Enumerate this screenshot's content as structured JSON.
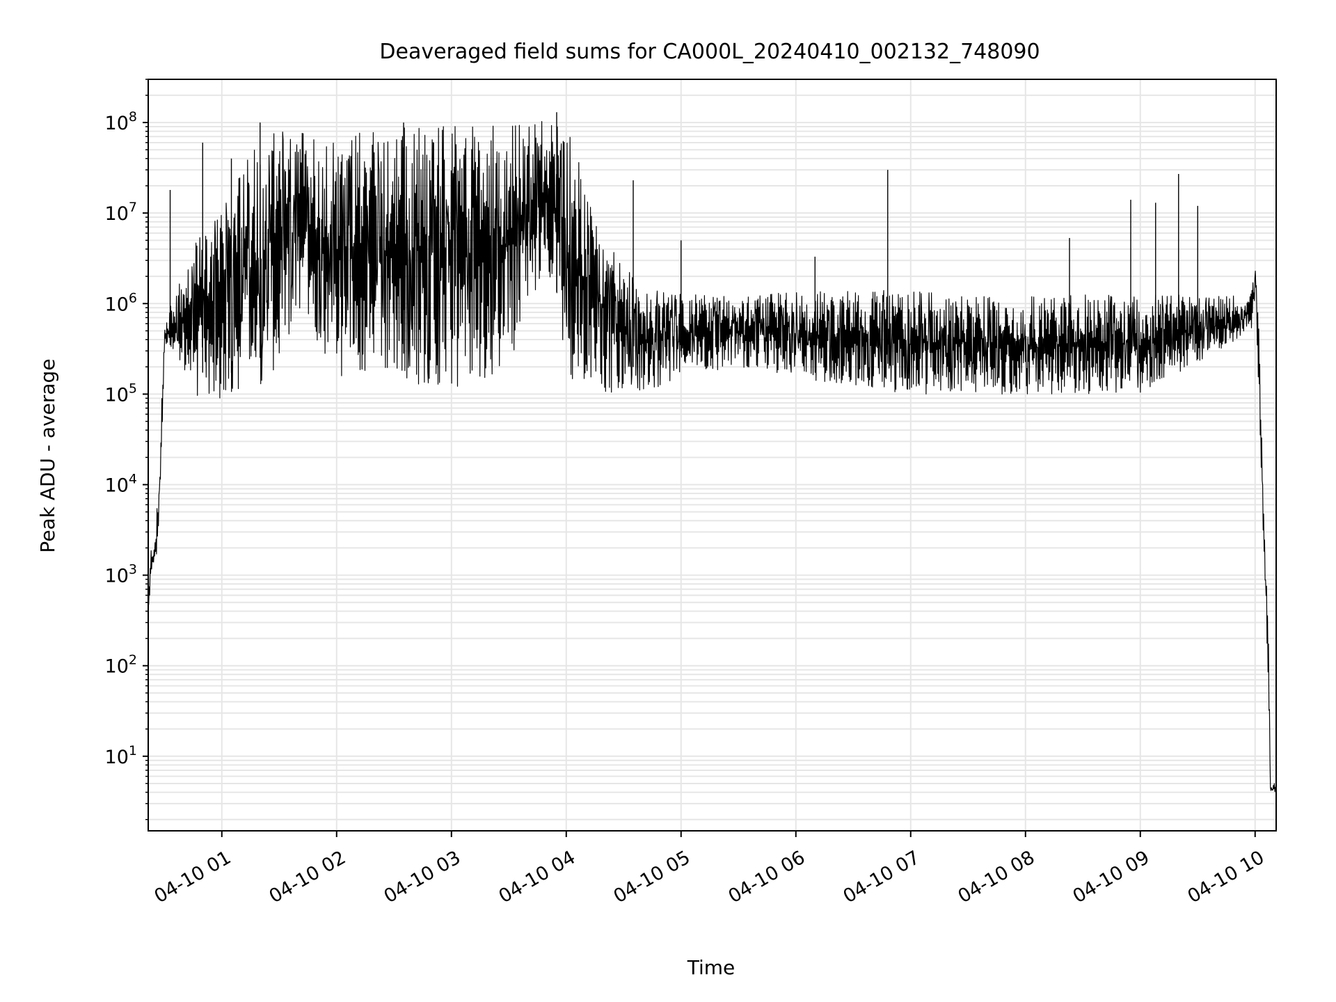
{
  "chart_data": {
    "type": "line",
    "title": "Deaveraged field sums for CA000L_20240410_002132_748090",
    "xlabel": "Time",
    "ylabel": "Peak ADU - average",
    "y_scale": "log",
    "ylim": [
      1.5,
      300000000
    ],
    "xlim": [
      "2024-04-10 00:21:32",
      "2024-04-10 10:11:00"
    ],
    "grid": true,
    "line_color": "#000000",
    "grid_color": "#e6e6e6",
    "x_ticks": [
      {
        "t": "2024-04-10 01:00",
        "label": "04-10 01"
      },
      {
        "t": "2024-04-10 02:00",
        "label": "04-10 02"
      },
      {
        "t": "2024-04-10 03:00",
        "label": "04-10 03"
      },
      {
        "t": "2024-04-10 04:00",
        "label": "04-10 04"
      },
      {
        "t": "2024-04-10 05:00",
        "label": "04-10 05"
      },
      {
        "t": "2024-04-10 06:00",
        "label": "04-10 06"
      },
      {
        "t": "2024-04-10 07:00",
        "label": "04-10 07"
      },
      {
        "t": "2024-04-10 08:00",
        "label": "04-10 08"
      },
      {
        "t": "2024-04-10 09:00",
        "label": "04-10 09"
      },
      {
        "t": "2024-04-10 10:00",
        "label": "04-10 10"
      }
    ],
    "y_ticks": [
      {
        "value": 10,
        "base": "10",
        "exp": "1"
      },
      {
        "value": 100,
        "base": "10",
        "exp": "2"
      },
      {
        "value": 1000,
        "base": "10",
        "exp": "3"
      },
      {
        "value": 10000,
        "base": "10",
        "exp": "4"
      },
      {
        "value": 100000,
        "base": "10",
        "exp": "5"
      },
      {
        "value": 1000000,
        "base": "10",
        "exp": "6"
      },
      {
        "value": 10000000,
        "base": "10",
        "exp": "7"
      },
      {
        "value": 100000000,
        "base": "10",
        "exp": "8"
      }
    ],
    "series": [
      {
        "band": [
          {
            "t": "2024-04-10 00:21:32",
            "low": 350,
            "high": 500
          },
          {
            "t": "2024-04-10 00:23",
            "low": 900,
            "high": 2000
          },
          {
            "t": "2024-04-10 00:25",
            "low": 1000,
            "high": 3000
          },
          {
            "t": "2024-04-10 00:27",
            "low": 2000,
            "high": 9000
          },
          {
            "t": "2024-04-10 00:30",
            "low": 300000,
            "high": 600000
          },
          {
            "t": "2024-04-10 00:35",
            "low": 300000,
            "high": 1200000
          },
          {
            "t": "2024-04-10 00:45",
            "low": 90000,
            "high": 5000000
          },
          {
            "t": "2024-04-10 01:00",
            "low": 80000,
            "high": 10000000
          },
          {
            "t": "2024-04-10 01:15",
            "low": 100000,
            "high": 60000000
          },
          {
            "t": "2024-04-10 01:30",
            "low": 200000,
            "high": 80000000
          },
          {
            "t": "2024-04-10 01:45",
            "low": 600000,
            "high": 90000000
          },
          {
            "t": "2024-04-10 02:00",
            "low": 150000,
            "high": 80000000
          },
          {
            "t": "2024-04-10 02:30",
            "low": 150000,
            "high": 100000000
          },
          {
            "t": "2024-04-10 03:00",
            "low": 100000,
            "high": 90000000
          },
          {
            "t": "2024-04-10 03:30",
            "low": 200000,
            "high": 100000000
          },
          {
            "t": "2024-04-10 03:50",
            "low": 3000000,
            "high": 110000000
          },
          {
            "t": "2024-04-10 04:00",
            "low": 150000,
            "high": 100000000
          },
          {
            "t": "2024-04-10 04:20",
            "low": 100000,
            "high": 5000000
          },
          {
            "t": "2024-04-10 04:40",
            "low": 100000,
            "high": 1500000
          },
          {
            "t": "2024-04-10 05:00",
            "low": 150000,
            "high": 1300000
          },
          {
            "t": "2024-04-10 05:30",
            "low": 200000,
            "high": 1200000
          },
          {
            "t": "2024-04-10 06:00",
            "low": 150000,
            "high": 1400000
          },
          {
            "t": "2024-04-10 07:00",
            "low": 100000,
            "high": 1400000
          },
          {
            "t": "2024-04-10 08:00",
            "low": 100000,
            "high": 1200000
          },
          {
            "t": "2024-04-10 09:00",
            "low": 100000,
            "high": 1300000
          },
          {
            "t": "2024-04-10 09:40",
            "low": 300000,
            "high": 1200000
          },
          {
            "t": "2024-04-10 09:58",
            "low": 500000,
            "high": 1300000
          },
          {
            "t": "2024-04-10 10:00",
            "low": 1000000,
            "high": 2700000
          },
          {
            "t": "2024-04-10 10:02",
            "low": 100000,
            "high": 500000
          },
          {
            "t": "2024-04-10 10:05",
            "low": 800,
            "high": 2700
          },
          {
            "t": "2024-04-10 10:07",
            "low": 60,
            "high": 300
          },
          {
            "t": "2024-04-10 10:08",
            "low": 4,
            "high": 5
          },
          {
            "t": "2024-04-10 10:11",
            "low": 4,
            "high": 5
          }
        ],
        "spikes": [
          {
            "t": "2024-04-10 00:33",
            "value": 18000000
          },
          {
            "t": "2024-04-10 00:50",
            "value": 60000000
          },
          {
            "t": "2024-04-10 01:05",
            "value": 40000000
          },
          {
            "t": "2024-04-10 01:20",
            "value": 100000000
          },
          {
            "t": "2024-04-10 02:35",
            "value": 100000000
          },
          {
            "t": "2024-04-10 03:55",
            "value": 130000000
          },
          {
            "t": "2024-04-10 04:35",
            "value": 23000000
          },
          {
            "t": "2024-04-10 05:00",
            "value": 5000000
          },
          {
            "t": "2024-04-10 06:10",
            "value": 3300000
          },
          {
            "t": "2024-04-10 06:48",
            "value": 30000000
          },
          {
            "t": "2024-04-10 08:23",
            "value": 5300000
          },
          {
            "t": "2024-04-10 08:55",
            "value": 14000000
          },
          {
            "t": "2024-04-10 09:08",
            "value": 13000000
          },
          {
            "t": "2024-04-10 09:20",
            "value": 27000000
          },
          {
            "t": "2024-04-10 09:30",
            "value": 12000000
          }
        ]
      }
    ]
  }
}
